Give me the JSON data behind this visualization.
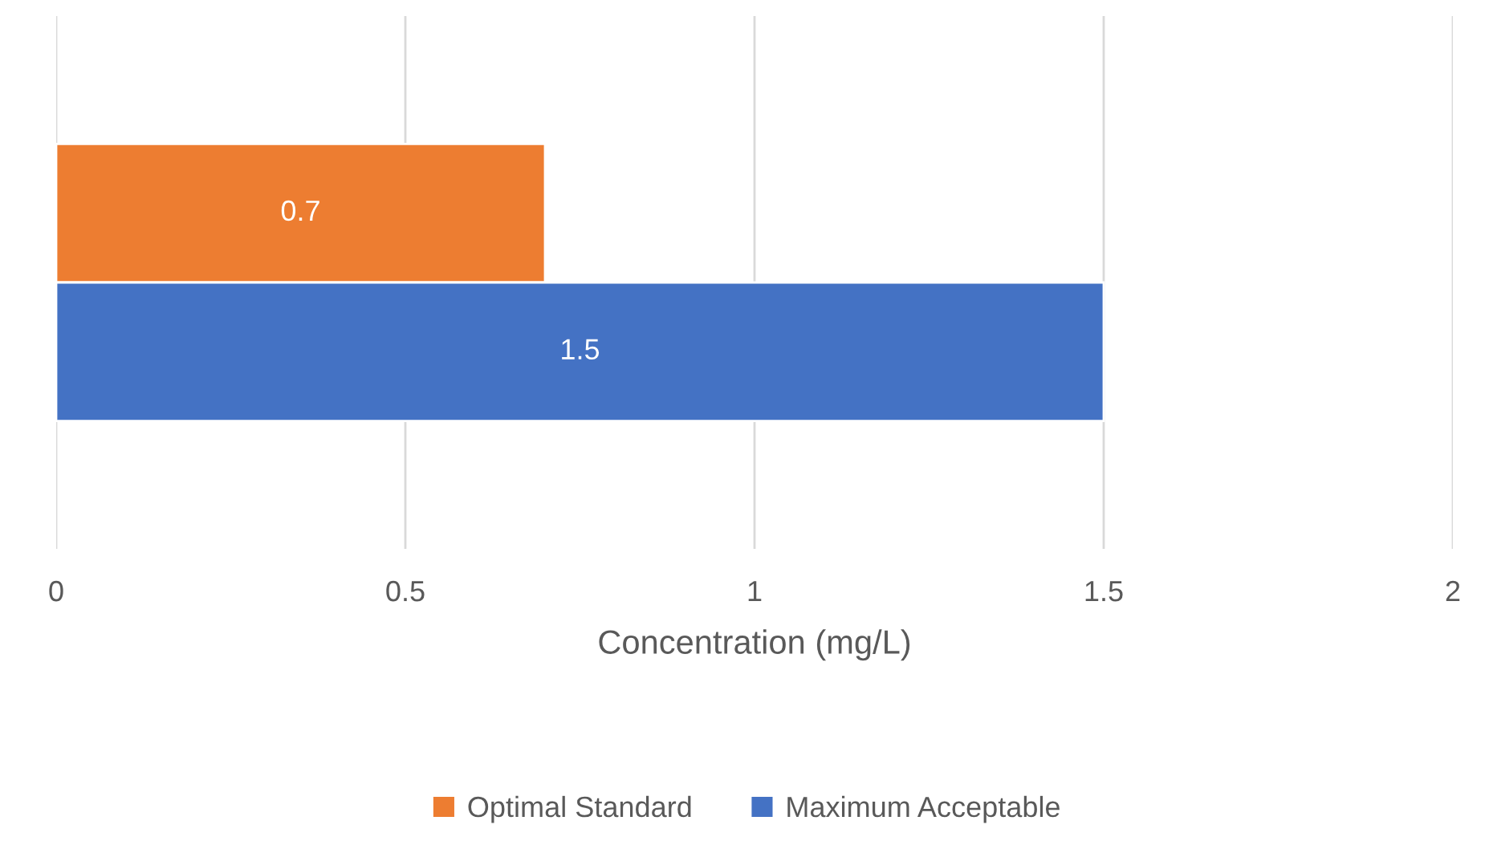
{
  "chart_data": {
    "type": "bar",
    "orientation": "horizontal",
    "categories": [
      null
    ],
    "series": [
      {
        "name": "Optimal Standard",
        "color": "#ed7d31",
        "values": [
          0.7
        ]
      },
      {
        "name": "Maximum Acceptable",
        "color": "#4472c4",
        "values": [
          1.5
        ]
      }
    ],
    "xlabel": "Concentration (mg/L)",
    "xlim": [
      0,
      2
    ],
    "xticks": [
      0,
      0.5,
      1,
      1.5,
      2
    ],
    "grid": "x",
    "legend": "bottom",
    "data_labels": true,
    "tick_labels": "x"
  }
}
